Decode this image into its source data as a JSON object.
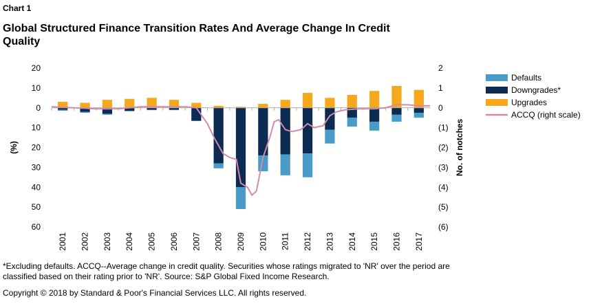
{
  "chart_data": {
    "type": "bar",
    "label": "Chart 1",
    "title": "Global Structured Finance Transition Rates And Average Change In Credit Quality",
    "ylabel": "(%)",
    "y2label": "No. of notches",
    "categories": [
      "2001",
      "2002",
      "2003",
      "2004",
      "2005",
      "2006",
      "2007",
      "2008",
      "2009",
      "2010",
      "2011",
      "2012",
      "2013",
      "2014",
      "2015",
      "2016",
      "2017"
    ],
    "series": [
      {
        "name": "Defaults",
        "color": "#4a9cc8",
        "values": [
          -0.5,
          -0.5,
          -0.5,
          -0.3,
          -0.2,
          -0.2,
          -0.2,
          -2.5,
          -11,
          -8,
          -10.5,
          -12,
          -7,
          -4.5,
          -4.5,
          -3.5,
          -2.5
        ]
      },
      {
        "name": "Downgrades*",
        "color": "#0c2a52",
        "values": [
          -1,
          -2,
          -3,
          -1.5,
          -1,
          -1,
          -6.5,
          -28,
          -40,
          -24,
          -23.5,
          -23,
          -11,
          -5,
          -7,
          -3.5,
          -2.5
        ]
      },
      {
        "name": "Upgrades",
        "color": "#f5a81c",
        "values": [
          3,
          2.5,
          4,
          4.5,
          5,
          4,
          2.5,
          1,
          0.5,
          2,
          4,
          7.5,
          5,
          6.5,
          8.5,
          11,
          9
        ]
      },
      {
        "name": "ACCQ (right scale)",
        "color": "#d48aa6",
        "type": "line",
        "axis": "y2",
        "x": [
          2001,
          2002,
          2003,
          2004,
          2005,
          2006,
          2007,
          2007.5,
          2008,
          2008.3,
          2008.7,
          2009,
          2009.3,
          2009.5,
          2009.8,
          2010,
          2010.2,
          2010.5,
          2010.8,
          2011,
          2011.2,
          2011.5,
          2011.8,
          2012.2,
          2012.5,
          2012.8,
          2013.2,
          2013.5,
          2013.8,
          2014.2,
          2014.8,
          2015.5,
          2016,
          2016.5,
          2017,
          2017.5,
          2018
        ],
        "values": [
          0.05,
          0,
          -0.05,
          -0.05,
          0.05,
          0.05,
          0.05,
          0,
          -0.8,
          -1.5,
          -2.3,
          -2.5,
          -2.6,
          -3.8,
          -4,
          -4.4,
          -4.2,
          -2.5,
          -1.5,
          -0.7,
          -0.6,
          -1.1,
          -1.2,
          -1.1,
          -0.8,
          -1,
          -0.9,
          -0.4,
          -0.2,
          -0.1,
          -0.05,
          -0.05,
          0,
          0.15,
          0.15,
          0.1,
          0.1
        ]
      }
    ],
    "ylim": [
      -60,
      20
    ],
    "yticks": [
      20,
      10,
      0,
      {
        "value": -10,
        "label": "10"
      },
      {
        "value": -20,
        "label": "20"
      },
      {
        "value": -30,
        "label": "30"
      },
      {
        "value": -40,
        "label": "40"
      },
      {
        "value": -50,
        "label": "50"
      },
      {
        "value": -60,
        "label": "60"
      }
    ],
    "y2lim": [
      -6,
      2
    ],
    "y2ticks": [
      2,
      1,
      0,
      {
        "value": -1,
        "label": "(1)"
      },
      {
        "value": -2,
        "label": "(2)"
      },
      {
        "value": -3,
        "label": "(3)"
      },
      {
        "value": -4,
        "label": "(4)"
      },
      {
        "value": -5,
        "label": "(5)"
      },
      {
        "value": -6,
        "label": "(6)"
      }
    ],
    "xlim": [
      2001,
      2018
    ],
    "footnote": "*Excluding defaults. ACCQ--Average change in credit quality. Securities whose ratings migrated to 'NR' over the period are classified based on their rating prior to 'NR'. Source: S&P Global Fixed Income Research.",
    "copyright": "Copyright © 2018 by Standard & Poor's Financial Services LLC. All rights reserved."
  }
}
